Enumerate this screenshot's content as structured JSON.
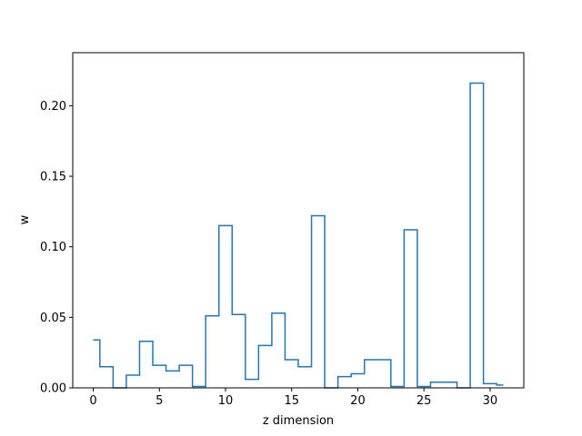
{
  "chart_data": {
    "type": "line",
    "drawstyle": "steps-mid",
    "title": "",
    "xlabel": "z dimension",
    "ylabel": "w",
    "xlim": [
      -1.55,
      32.55
    ],
    "ylim": [
      0,
      0.2376
    ],
    "xticks": [
      0,
      5,
      10,
      15,
      20,
      25,
      30
    ],
    "yticks": [
      0.0,
      0.05,
      0.1,
      0.15,
      0.2
    ],
    "ytick_labels": [
      "0.00",
      "0.05",
      "0.10",
      "0.15",
      "0.20"
    ],
    "grid": false,
    "line_color": "#1f77b4",
    "x": [
      0,
      1,
      2,
      3,
      4,
      5,
      6,
      7,
      8,
      9,
      10,
      11,
      12,
      13,
      14,
      15,
      16,
      17,
      18,
      19,
      20,
      21,
      22,
      23,
      24,
      25,
      26,
      27,
      28,
      29,
      30,
      31
    ],
    "y": [
      0.034,
      0.015,
      0.0,
      0.009,
      0.033,
      0.016,
      0.012,
      0.016,
      0.001,
      0.051,
      0.115,
      0.052,
      0.006,
      0.03,
      0.053,
      0.02,
      0.015,
      0.122,
      0.0,
      0.008,
      0.01,
      0.02,
      0.02,
      0.001,
      0.112,
      0.001,
      0.004,
      0.004,
      0.0,
      0.216,
      0.003,
      0.002
    ]
  }
}
